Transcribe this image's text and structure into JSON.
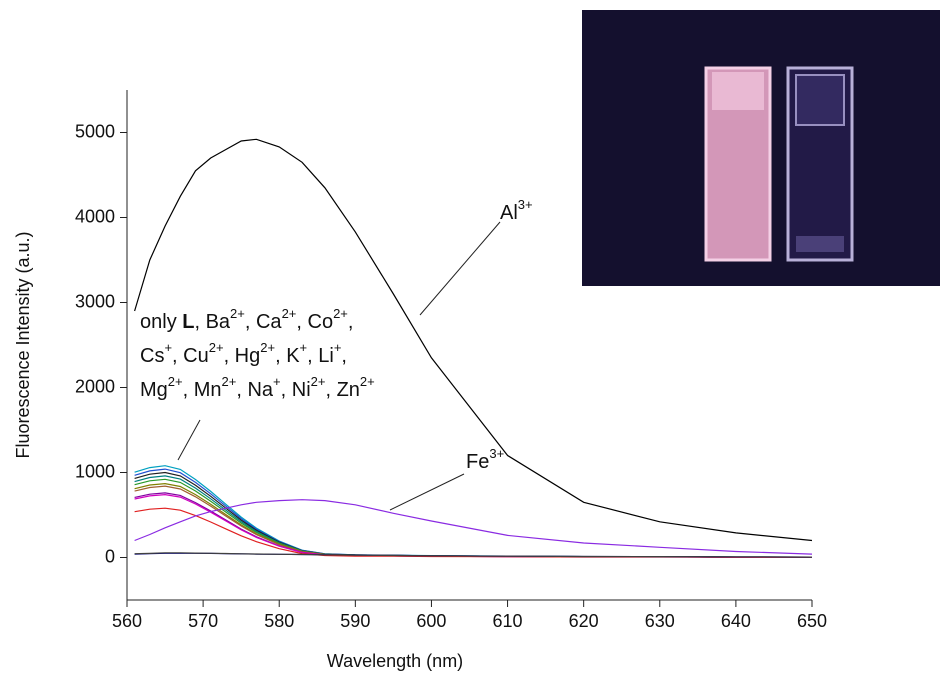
{
  "chart_data": {
    "type": "line",
    "x_label": "Wavelength (nm)",
    "y_label": "Fluorescence Intensity (a.u.)",
    "xlim": [
      560,
      650
    ],
    "ylim": [
      -500,
      5500
    ],
    "xticks": [
      560,
      570,
      580,
      590,
      600,
      610,
      620,
      630,
      640,
      650
    ],
    "yticks": [
      0,
      1000,
      2000,
      3000,
      4000,
      5000
    ],
    "x": [
      561,
      563,
      565,
      567,
      569,
      571,
      573,
      575,
      577,
      580,
      583,
      586,
      590,
      595,
      600,
      610,
      620,
      630,
      640,
      650
    ],
    "series": [
      {
        "color": "#00a0c0",
        "values": [
          1004,
          1058,
          1080,
          1037,
          918,
          778,
          626,
          475,
          346,
          194,
          86,
          43,
          32,
          27,
          22,
          16,
          11,
          11,
          5,
          5
        ]
      },
      {
        "color": "#2050d0",
        "values": [
          967,
          1019,
          1040,
          998,
          884,
          749,
          603,
          458,
          333,
          187,
          83,
          42,
          31,
          26,
          21,
          16,
          10,
          10,
          5,
          5
        ]
      },
      {
        "color": "#202020",
        "values": [
          930,
          980,
          1000,
          960,
          850,
          720,
          580,
          440,
          320,
          180,
          80,
          40,
          30,
          25,
          20,
          15,
          10,
          10,
          5,
          5
        ]
      },
      {
        "color": "#008080",
        "values": [
          893,
          941,
          960,
          922,
          816,
          691,
          557,
          422,
          307,
          173,
          77,
          38,
          29,
          24,
          19,
          14,
          10,
          10,
          5,
          5
        ]
      },
      {
        "color": "#2a9a2a",
        "values": [
          856,
          902,
          920,
          883,
          782,
          662,
          534,
          405,
          294,
          166,
          74,
          37,
          28,
          23,
          18,
          14,
          9,
          9,
          5,
          5
        ]
      },
      {
        "color": "#808000",
        "values": [
          809,
          853,
          870,
          835,
          740,
          626,
          505,
          383,
          278,
          157,
          70,
          35,
          26,
          22,
          17,
          13,
          9,
          9,
          4,
          4
        ]
      },
      {
        "color": "#a06030",
        "values": [
          781,
          823,
          840,
          806,
          714,
          605,
          487,
          370,
          269,
          151,
          67,
          34,
          25,
          21,
          17,
          13,
          8,
          8,
          4,
          4
        ]
      },
      {
        "color": "#8000a0",
        "values": [
          707,
          745,
          760,
          730,
          646,
          547,
          441,
          334,
          243,
          137,
          61,
          30,
          23,
          19,
          15,
          11,
          8,
          8,
          4,
          4
        ]
      },
      {
        "color": "#d000c0",
        "values": [
          688,
          725,
          740,
          710,
          629,
          533,
          429,
          326,
          237,
          133,
          59,
          30,
          22,
          19,
          15,
          11,
          7,
          7,
          4,
          4
        ]
      },
      {
        "color": "#e02020",
        "values": [
          539,
          568,
          580,
          557,
          493,
          418,
          336,
          255,
          186,
          104,
          46,
          23,
          17,
          15,
          12,
          9,
          6,
          6,
          3,
          3
        ]
      },
      {
        "color": "#000080",
        "values": [
          40,
          45,
          50,
          52,
          50,
          48,
          45,
          42,
          40,
          38,
          35,
          33,
          30,
          25,
          20,
          15,
          12,
          10,
          8,
          5
        ]
      },
      {
        "color": "#404040",
        "values": [
          45,
          48,
          55,
          55,
          52,
          50,
          47,
          44,
          41,
          38,
          35,
          32,
          28,
          24,
          20,
          15,
          12,
          10,
          8,
          5
        ]
      },
      {
        "color": "#000000",
        "values": [
          2900,
          3500,
          3900,
          4250,
          4550,
          4700,
          4800,
          4900,
          4920,
          4830,
          4650,
          4350,
          3830,
          3100,
          2350,
          1200,
          650,
          420,
          290,
          200
        ]
      },
      {
        "color": "#8a2be2",
        "values": [
          200,
          270,
          350,
          420,
          490,
          540,
          580,
          620,
          650,
          670,
          680,
          670,
          620,
          520,
          430,
          260,
          170,
          120,
          70,
          40
        ]
      }
    ],
    "annotations": {
      "al": [
        "Al",
        "3+"
      ],
      "fe": [
        "Fe",
        "3+"
      ],
      "group_lines": [
        [
          [
            "only ",
            ""
          ],
          [
            "L",
            "",
            true
          ],
          [
            ", Ba",
            "2+"
          ],
          [
            ", Ca",
            "2+"
          ],
          [
            ", Co",
            "2+"
          ],
          [
            ",",
            ""
          ]
        ],
        [
          [
            "Cs",
            "+"
          ],
          [
            ", Cu",
            "2+"
          ],
          [
            ", Hg",
            "2+"
          ],
          [
            ", K",
            "+"
          ],
          [
            ", Li",
            "+"
          ],
          [
            ",",
            ""
          ]
        ],
        [
          [
            "Mg",
            "2+"
          ],
          [
            ", Mn",
            "2+"
          ],
          [
            ", Na",
            "+"
          ],
          [
            ", Ni",
            "2+"
          ],
          [
            ", Zn",
            "2+"
          ]
        ]
      ]
    }
  }
}
